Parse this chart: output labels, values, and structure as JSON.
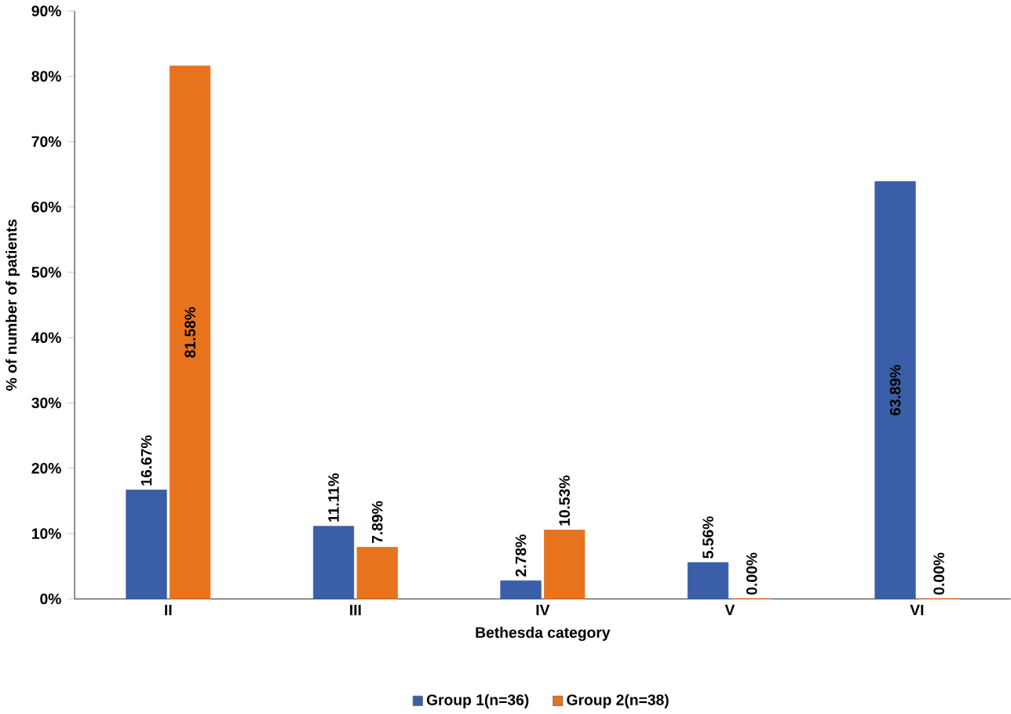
{
  "chart_data": {
    "type": "bar",
    "xlabel": "Bethesda category",
    "ylabel": "% of number of patients",
    "categories": [
      "II",
      "III",
      "IV",
      "V",
      "VI"
    ],
    "series": [
      {
        "name": "Group 1(n=36)",
        "color": "#3a5fa8",
        "values": [
          16.67,
          11.11,
          2.78,
          5.56,
          63.89
        ],
        "value_labels": [
          "16.67%",
          "11.11%",
          "2.78%",
          "5.56%",
          "63.89%"
        ]
      },
      {
        "name": "Group 2(n=38)",
        "color": "#e8731c",
        "values": [
          81.58,
          7.89,
          10.53,
          0.0,
          0.0
        ],
        "value_labels": [
          "81.58%",
          "7.89%",
          "10.53%",
          "0.00%",
          "0.00%"
        ]
      }
    ],
    "ylim": [
      0,
      90
    ],
    "yticks": [
      {
        "value": 0,
        "label": "0%"
      },
      {
        "value": 10,
        "label": "10%"
      },
      {
        "value": 20,
        "label": "20%"
      },
      {
        "value": 30,
        "label": "30%"
      },
      {
        "value": 40,
        "label": "40%"
      },
      {
        "value": 50,
        "label": "50%"
      },
      {
        "value": 60,
        "label": "60%"
      },
      {
        "value": 70,
        "label": "70%"
      },
      {
        "value": 80,
        "label": "80%"
      },
      {
        "value": 90,
        "label": "90%"
      }
    ],
    "legend": "bottom",
    "grid": false
  }
}
